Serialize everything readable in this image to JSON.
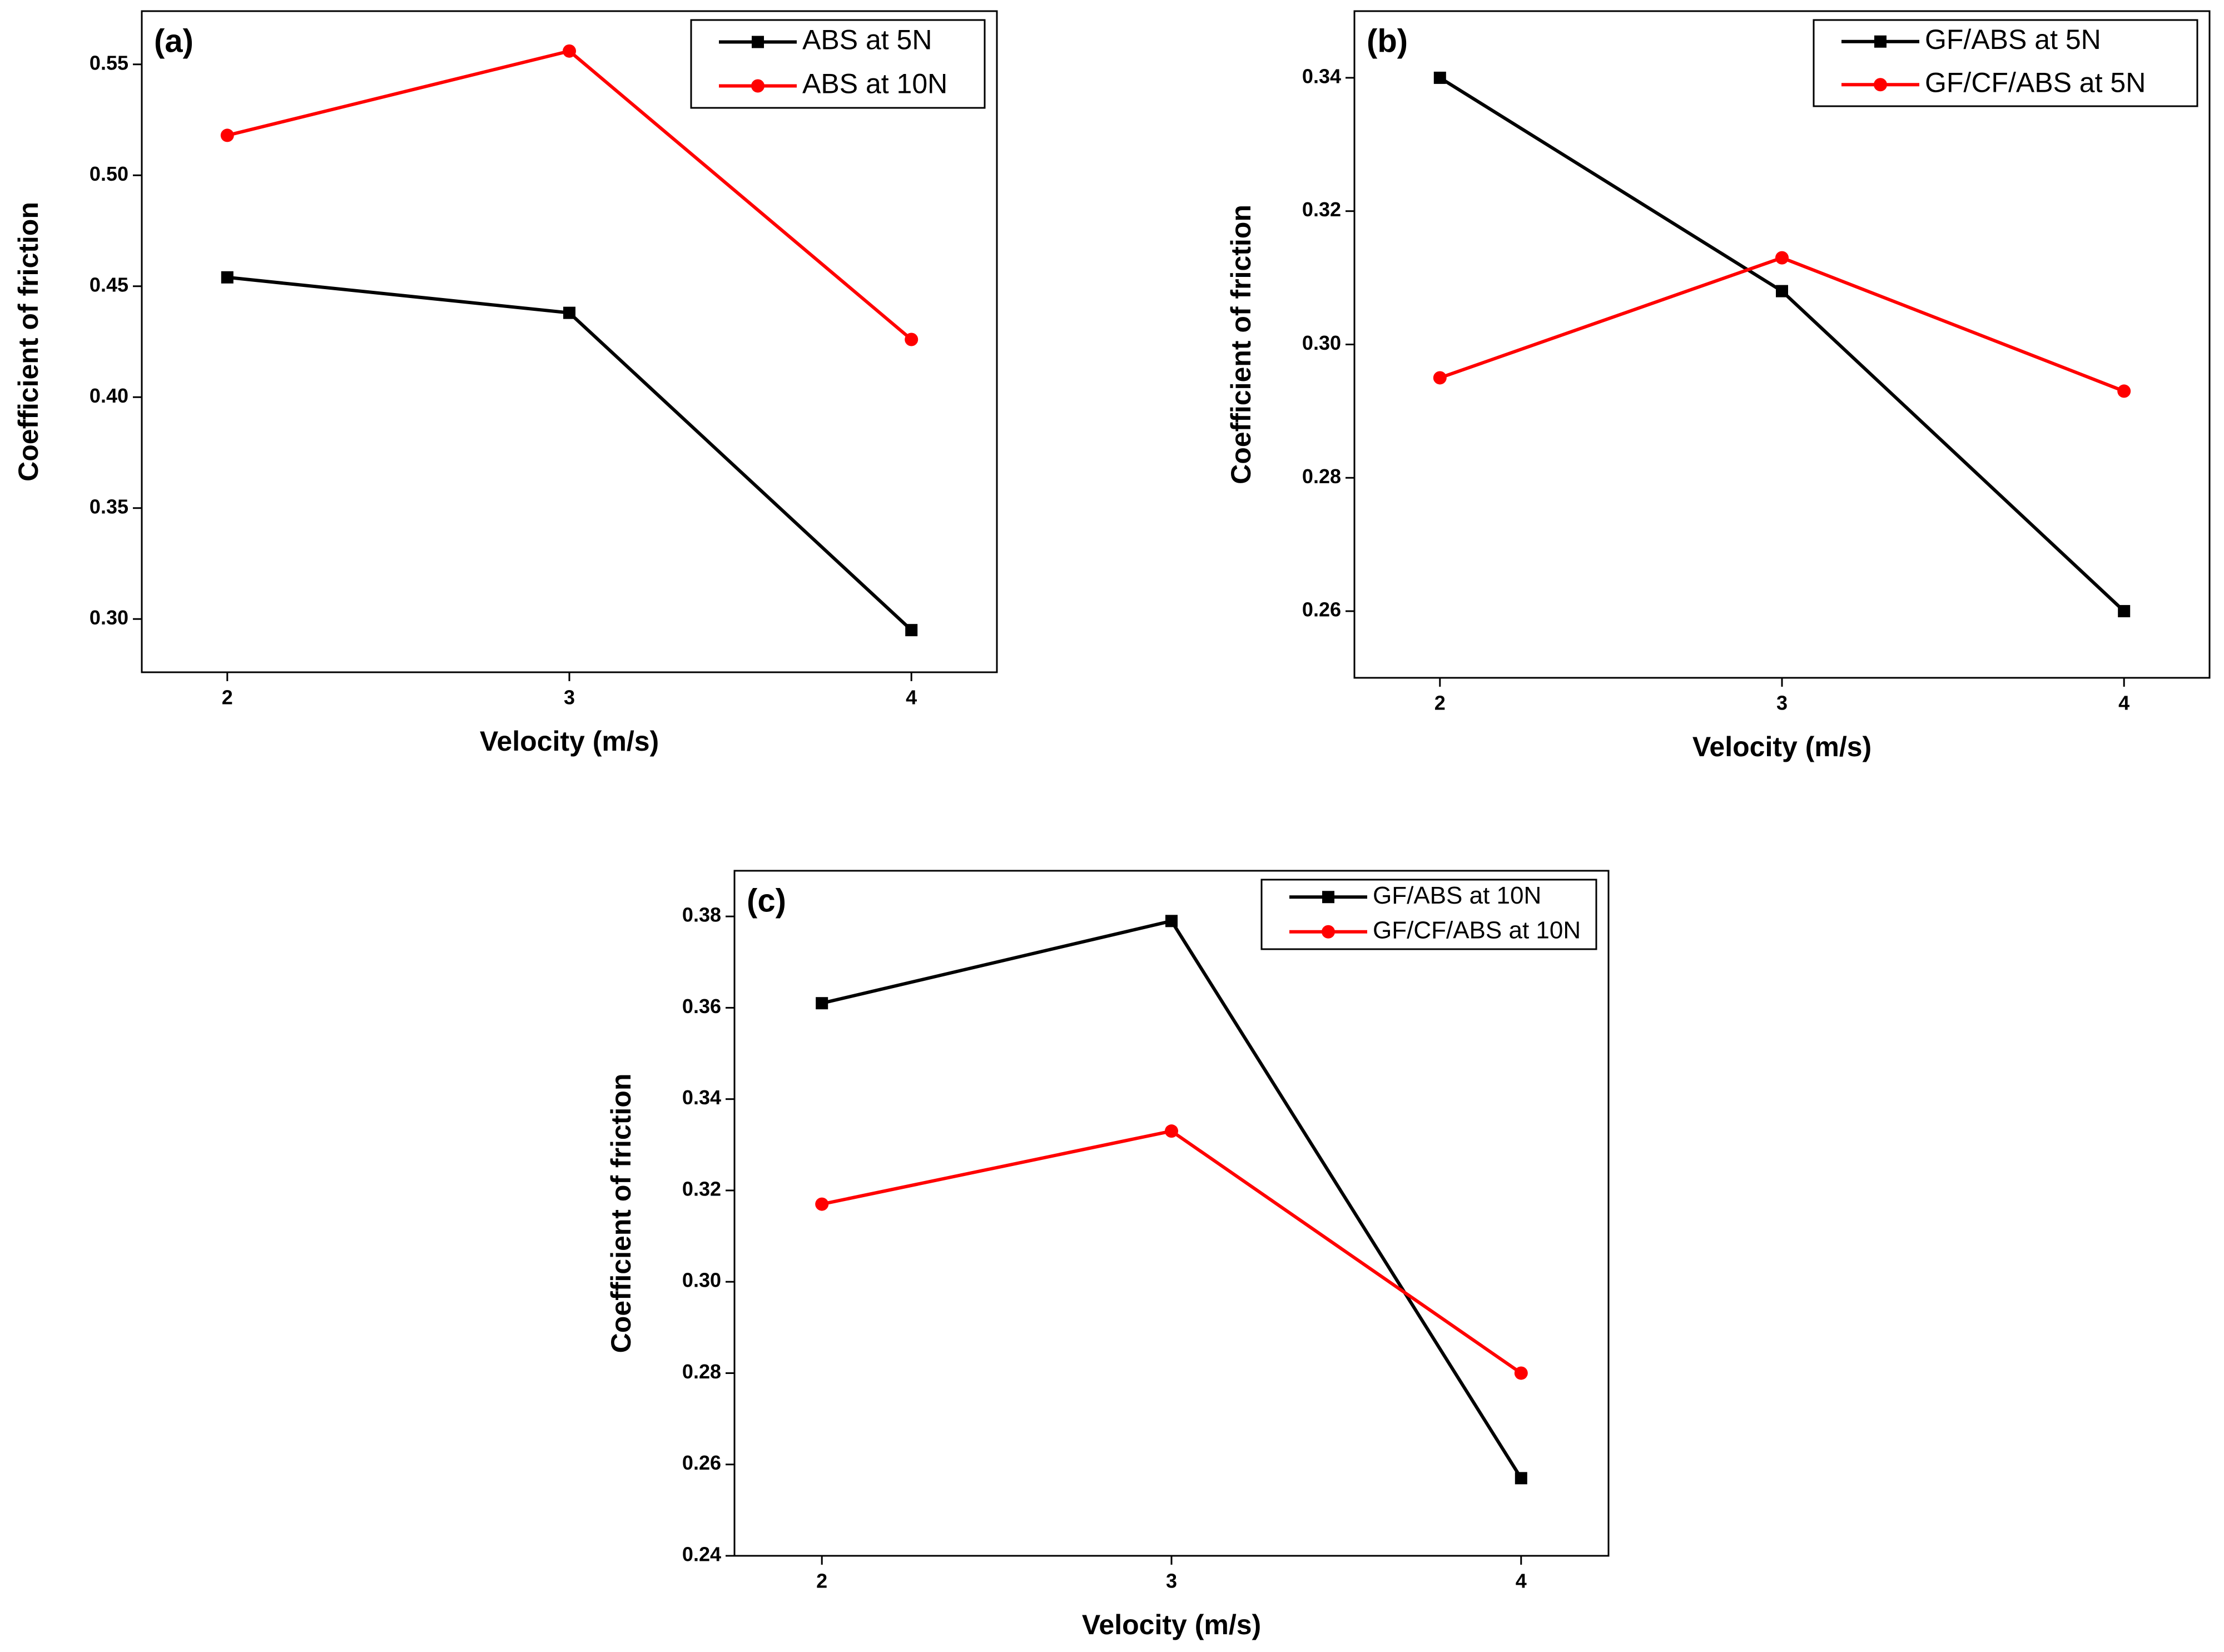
{
  "chart_data": [
    {
      "type": "line",
      "panel_label": "(a)",
      "xlabel": "Velocity (m/s)",
      "ylabel": "Coefficient of friction",
      "x": [
        2,
        3,
        4
      ],
      "xlim": [
        1.75,
        4.25
      ],
      "xticks": [
        2,
        3,
        4
      ],
      "ylim": [
        0.276,
        0.574
      ],
      "yticks": [
        {
          "value": 0.3,
          "label": "0.30"
        },
        0.35,
        {
          "value": 0.4,
          "label": "0.40"
        },
        0.45,
        {
          "value": 0.5,
          "label": "0.50"
        },
        0.55
      ],
      "legend": "upper right",
      "series": [
        {
          "name": "ABS at 5N",
          "color": "#000000",
          "marker": "square",
          "values": [
            0.454,
            0.438,
            0.295
          ]
        },
        {
          "name": "ABS at 10N",
          "color": "#ff0000",
          "marker": "circle",
          "values": [
            0.518,
            0.556,
            0.426
          ]
        }
      ]
    },
    {
      "type": "line",
      "panel_label": "(b)",
      "xlabel": "Velocity (m/s)",
      "ylabel": "Coefficient of friction",
      "x": [
        2,
        3,
        4
      ],
      "xlim": [
        1.75,
        4.25
      ],
      "xticks": [
        2,
        3,
        4
      ],
      "ylim": [
        0.25,
        0.35
      ],
      "yticks": [
        0.26,
        0.28,
        {
          "value": 0.3,
          "label": "0.30"
        },
        0.32,
        0.34
      ],
      "legend": "upper right",
      "series": [
        {
          "name": "GF/ABS at 5N",
          "color": "#000000",
          "marker": "square",
          "values": [
            0.34,
            0.308,
            0.26
          ]
        },
        {
          "name": "GF/CF/ABS at 5N",
          "color": "#ff0000",
          "marker": "circle",
          "values": [
            0.295,
            0.313,
            0.293
          ]
        }
      ]
    },
    {
      "type": "line",
      "panel_label": "(c)",
      "xlabel": "Velocity (m/s)",
      "ylabel": "Coefficient of friction",
      "x": [
        2,
        3,
        4
      ],
      "xlim": [
        1.75,
        4.25
      ],
      "xticks": [
        2,
        3,
        4
      ],
      "ylim": [
        0.24,
        0.39
      ],
      "yticks": [
        0.24,
        0.26,
        0.28,
        {
          "value": 0.3,
          "label": "0.30"
        },
        0.32,
        0.34,
        0.36,
        0.38
      ],
      "legend": "upper right",
      "series": [
        {
          "name": "GF/ABS at 10N",
          "color": "#000000",
          "marker": "square",
          "values": [
            0.361,
            0.379,
            0.257
          ]
        },
        {
          "name": "GF/CF/ABS at 10N",
          "color": "#ff0000",
          "marker": "circle",
          "values": [
            0.317,
            0.333,
            0.28
          ]
        }
      ]
    }
  ]
}
